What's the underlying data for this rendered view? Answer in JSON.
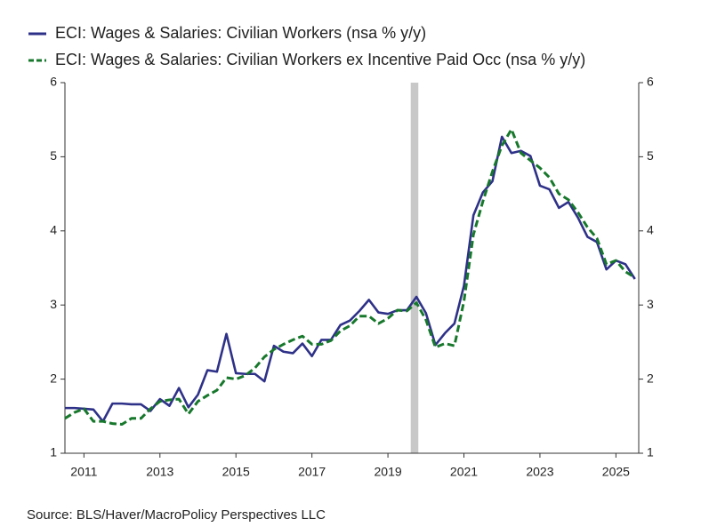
{
  "chart_data": {
    "type": "line",
    "series": [
      {
        "name": "ECI: Wages & Salaries: Civilian Workers (nsa % y/y)",
        "color": "#2e3188",
        "dash": false,
        "values": [
          1.61,
          1.61,
          1.6,
          1.59,
          1.43,
          1.67,
          1.67,
          1.66,
          1.66,
          1.57,
          1.73,
          1.64,
          1.88,
          1.62,
          1.79,
          2.12,
          2.1,
          2.61,
          2.08,
          2.07,
          2.07,
          1.97,
          2.45,
          2.37,
          2.35,
          2.48,
          2.31,
          2.53,
          2.53,
          2.73,
          2.79,
          2.92,
          3.07,
          2.9,
          2.88,
          2.93,
          2.93,
          3.11,
          2.89,
          2.46,
          2.62,
          2.75,
          3.26,
          4.21,
          4.52,
          4.67,
          5.27,
          5.05,
          5.08,
          5.01,
          4.61,
          4.56,
          4.31,
          4.39,
          4.18,
          3.92,
          3.85,
          3.48,
          3.6,
          3.55,
          3.35
        ]
      },
      {
        "name": "ECI: Wages & Salaries: Civilian Workers ex Incentive Paid Occ (nsa % y/y)",
        "color": "#17782c",
        "dash": true,
        "values": [
          1.47,
          1.55,
          1.6,
          1.43,
          1.43,
          1.4,
          1.39,
          1.47,
          1.47,
          1.6,
          1.7,
          1.72,
          1.73,
          1.53,
          1.7,
          1.78,
          1.85,
          2.02,
          2.0,
          2.05,
          2.15,
          2.3,
          2.4,
          2.47,
          2.53,
          2.58,
          2.47,
          2.47,
          2.52,
          2.65,
          2.72,
          2.85,
          2.85,
          2.75,
          2.82,
          2.93,
          2.92,
          3.03,
          2.8,
          2.43,
          2.48,
          2.45,
          3.05,
          3.95,
          4.4,
          4.8,
          5.15,
          5.37,
          5.05,
          4.95,
          4.85,
          4.72,
          4.5,
          4.42,
          4.25,
          4.05,
          3.9,
          3.55,
          3.6,
          3.45,
          3.37
        ]
      }
    ],
    "x": [
      2011,
      2011.25,
      2011.5,
      2011.75,
      2012,
      2012.25,
      2012.5,
      2012.75,
      2013,
      2013.25,
      2013.5,
      2013.75,
      2014,
      2014.25,
      2014.5,
      2014.75,
      2015,
      2015.25,
      2015.5,
      2015.75,
      2016,
      2016.25,
      2016.5,
      2016.75,
      2017,
      2017.25,
      2017.5,
      2017.75,
      2018,
      2018.25,
      2018.5,
      2018.75,
      2019,
      2019.25,
      2019.5,
      2019.75,
      2020,
      2020.25,
      2020.5,
      2020.75,
      2021,
      2021.25,
      2021.5,
      2021.75,
      2022,
      2022.25,
      2022.5,
      2022.75,
      2023,
      2023.25,
      2023.5,
      2023.75,
      2024,
      2024.25,
      2024.5,
      2024.75,
      2025,
      2025.25,
      2025.5,
      2025.75,
      2026
    ],
    "xlim": [
      2011,
      2026.1
    ],
    "xticks": [
      {
        "value": 2011.5,
        "label": "2011"
      },
      {
        "value": 2013.5,
        "label": "2013"
      },
      {
        "value": 2015.5,
        "label": "2015"
      },
      {
        "value": 2017.5,
        "label": "2017"
      },
      {
        "value": 2019.5,
        "label": "2019"
      },
      {
        "value": 2021.5,
        "label": "2021"
      },
      {
        "value": 2023.5,
        "label": "2023"
      },
      {
        "value": 2025.5,
        "label": "2025"
      }
    ],
    "ylim": [
      1,
      6
    ],
    "yticks": [
      1,
      2,
      3,
      4,
      5,
      6
    ],
    "y2lim": [
      1,
      6
    ],
    "y2ticks": [
      1,
      2,
      3,
      4,
      5,
      6
    ],
    "recession": [
      2020.1,
      2020.3
    ],
    "source": "Source:  BLS/Haver/MacroPolicy Perspectives LLC"
  }
}
